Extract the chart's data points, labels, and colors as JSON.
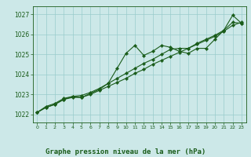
{
  "title": "Graphe pression niveau de la mer (hPa)",
  "bg_color": "#cce8e8",
  "line_color": "#1a5c1a",
  "grid_color": "#99cccc",
  "ylim": [
    1021.6,
    1027.4
  ],
  "xlim": [
    -0.5,
    23.5
  ],
  "yticks": [
    1022,
    1023,
    1024,
    1025,
    1026,
    1027
  ],
  "xticks": [
    0,
    1,
    2,
    3,
    4,
    5,
    6,
    7,
    8,
    9,
    10,
    11,
    12,
    13,
    14,
    15,
    16,
    17,
    18,
    19,
    20,
    21,
    22,
    23
  ],
  "series1": [
    1022.1,
    1022.4,
    1022.55,
    1022.8,
    1022.9,
    1022.85,
    1023.05,
    1023.25,
    1023.55,
    1024.3,
    1025.05,
    1025.45,
    1024.95,
    1025.15,
    1025.45,
    1025.35,
    1025.15,
    1025.05,
    1025.3,
    1025.3,
    1025.75,
    1026.2,
    1026.95,
    1026.55
  ],
  "series2": [
    1022.1,
    1022.35,
    1022.5,
    1022.75,
    1022.9,
    1022.95,
    1023.1,
    1023.3,
    1023.55,
    1023.8,
    1024.05,
    1024.3,
    1024.55,
    1024.75,
    1025.0,
    1025.25,
    1025.3,
    1025.3,
    1025.55,
    1025.75,
    1025.95,
    1026.2,
    1026.6,
    1026.55
  ],
  "series3": [
    1022.1,
    1022.35,
    1022.5,
    1022.75,
    1022.85,
    1022.85,
    1023.0,
    1023.2,
    1023.4,
    1023.6,
    1023.8,
    1024.05,
    1024.25,
    1024.5,
    1024.7,
    1024.9,
    1025.1,
    1025.3,
    1025.5,
    1025.7,
    1025.9,
    1026.15,
    1026.45,
    1026.6
  ]
}
